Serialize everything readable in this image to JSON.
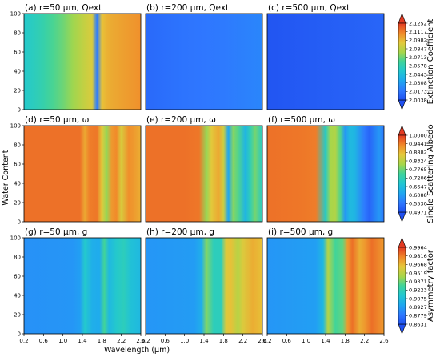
{
  "chart_data": {
    "type": "heatmap",
    "xlabel": "Wavelength (µm)",
    "ylabel": "Water Content",
    "xlim": [
      0.2,
      2.6
    ],
    "ylim": [
      0,
      100
    ],
    "x_ticks": [
      "0.2",
      "0.6",
      "1.0",
      "1.4",
      "1.8",
      "2.2",
      "2.6"
    ],
    "y_ticks": [
      "0",
      "20",
      "40",
      "60",
      "80",
      "100"
    ],
    "rows": [
      {
        "colorbar": {
          "label": "Extinction Coefficient",
          "ticks": [
            "2.1252",
            "2.1117",
            "2.0982",
            "2.0847",
            "2.0713",
            "2.0578",
            "2.0443",
            "2.0308",
            "2.0173",
            "2.0038"
          ],
          "min": 2.0038,
          "max": 2.1252
        },
        "panels": [
          {
            "title": "(a) r=50 µm, Qext",
            "x": [
              0.2,
              0.4,
              0.6,
              0.8,
              1.0,
              1.2,
              1.4,
              1.6,
              1.7,
              1.8,
              1.9,
              2.0,
              2.2,
              2.4,
              2.6
            ],
            "values": [
              2.051,
              2.055,
              2.06,
              2.066,
              2.071,
              2.078,
              2.085,
              2.092,
              2.02,
              2.096,
              2.1,
              2.102,
              2.104,
              2.106,
              2.108
            ]
          },
          {
            "title": "(b) r=200 µm, Qext",
            "x": [
              0.2,
              0.6,
              1.0,
              1.4,
              1.8,
              2.2,
              2.6
            ],
            "values": [
              2.013,
              2.015,
              2.017,
              2.018,
              2.019,
              2.021,
              2.023
            ]
          },
          {
            "title": "(c) r=500 µm, Qext",
            "x": [
              0.2,
              0.6,
              1.0,
              1.4,
              1.8,
              2.2,
              2.6
            ],
            "values": [
              2.006,
              2.007,
              2.008,
              2.009,
              2.01,
              2.011,
              2.012
            ]
          }
        ]
      },
      {
        "colorbar": {
          "label": "Single Scattering Albedo",
          "ticks": [
            "1.0000",
            "0.9441",
            "0.8882",
            "0.8324",
            "0.7765",
            "0.7206",
            "0.6647",
            "0.6088",
            "0.5530",
            "0.4971"
          ],
          "min": 0.4971,
          "max": 1.0
        },
        "panels": [
          {
            "title": "(d) r=50 µm, ω",
            "x": [
              0.2,
              1.0,
              1.35,
              1.45,
              1.55,
              1.7,
              1.8,
              1.9,
              2.0,
              2.1,
              2.2,
              2.35,
              2.45,
              2.6
            ],
            "values": [
              0.955,
              0.955,
              0.955,
              0.905,
              0.945,
              0.95,
              0.87,
              0.8,
              0.92,
              0.935,
              0.86,
              0.93,
              0.92,
              0.9
            ]
          },
          {
            "title": "(e) r=200 µm, ω",
            "x": [
              0.2,
              1.0,
              1.3,
              1.45,
              1.55,
              1.7,
              1.8,
              1.9,
              2.0,
              2.1,
              2.25,
              2.35,
              2.45,
              2.6
            ],
            "values": [
              0.955,
              0.955,
              0.95,
              0.8,
              0.87,
              0.905,
              0.85,
              0.62,
              0.79,
              0.76,
              0.65,
              0.72,
              0.78,
              0.7
            ]
          },
          {
            "title": "(f) r=500 µm, ω",
            "x": [
              0.2,
              0.9,
              1.2,
              1.4,
              1.5,
              1.6,
              1.7,
              1.8,
              1.9,
              2.0,
              2.2,
              2.3,
              2.5,
              2.6
            ],
            "values": [
              0.955,
              0.95,
              0.945,
              0.7,
              0.81,
              0.82,
              0.76,
              0.6,
              0.66,
              0.65,
              0.56,
              0.53,
              0.6,
              0.56
            ]
          }
        ]
      },
      {
        "colorbar": {
          "label": "Asymmetry factor",
          "ticks": [
            "0.9964",
            "0.9816",
            "0.9668",
            "0.9519",
            "0.9371",
            "0.9223",
            "0.9075",
            "0.8927",
            "0.8779",
            "0.8631"
          ],
          "min": 0.8631,
          "max": 0.9964
        },
        "panels": [
          {
            "title": "(g) r=50 µm, g",
            "x": [
              0.2,
              1.2,
              1.35,
              1.45,
              1.6,
              1.75,
              1.85,
              1.95,
              2.1,
              2.25,
              2.4,
              2.6
            ],
            "values": [
              0.888,
              0.89,
              0.893,
              0.915,
              0.9,
              0.898,
              0.93,
              0.905,
              0.915,
              0.92,
              0.91,
              0.905
            ]
          },
          {
            "title": "(h) r=200 µm, g",
            "x": [
              0.2,
              1.2,
              1.35,
              1.45,
              1.6,
              1.75,
              1.85,
              1.95,
              2.1,
              2.2,
              2.4,
              2.6
            ],
            "values": [
              0.89,
              0.892,
              0.9,
              0.94,
              0.92,
              0.92,
              0.96,
              0.965,
              0.95,
              0.96,
              0.97,
              0.965
            ]
          },
          {
            "title": "(i) r=500 µm, g",
            "x": [
              0.2,
              1.2,
              1.35,
              1.45,
              1.6,
              1.75,
              1.85,
              1.95,
              2.1,
              2.2,
              2.35,
              2.6
            ],
            "values": [
              0.89,
              0.893,
              0.905,
              0.95,
              0.93,
              0.935,
              0.975,
              0.985,
              0.97,
              0.975,
              0.985,
              0.975
            ]
          }
        ]
      }
    ]
  }
}
